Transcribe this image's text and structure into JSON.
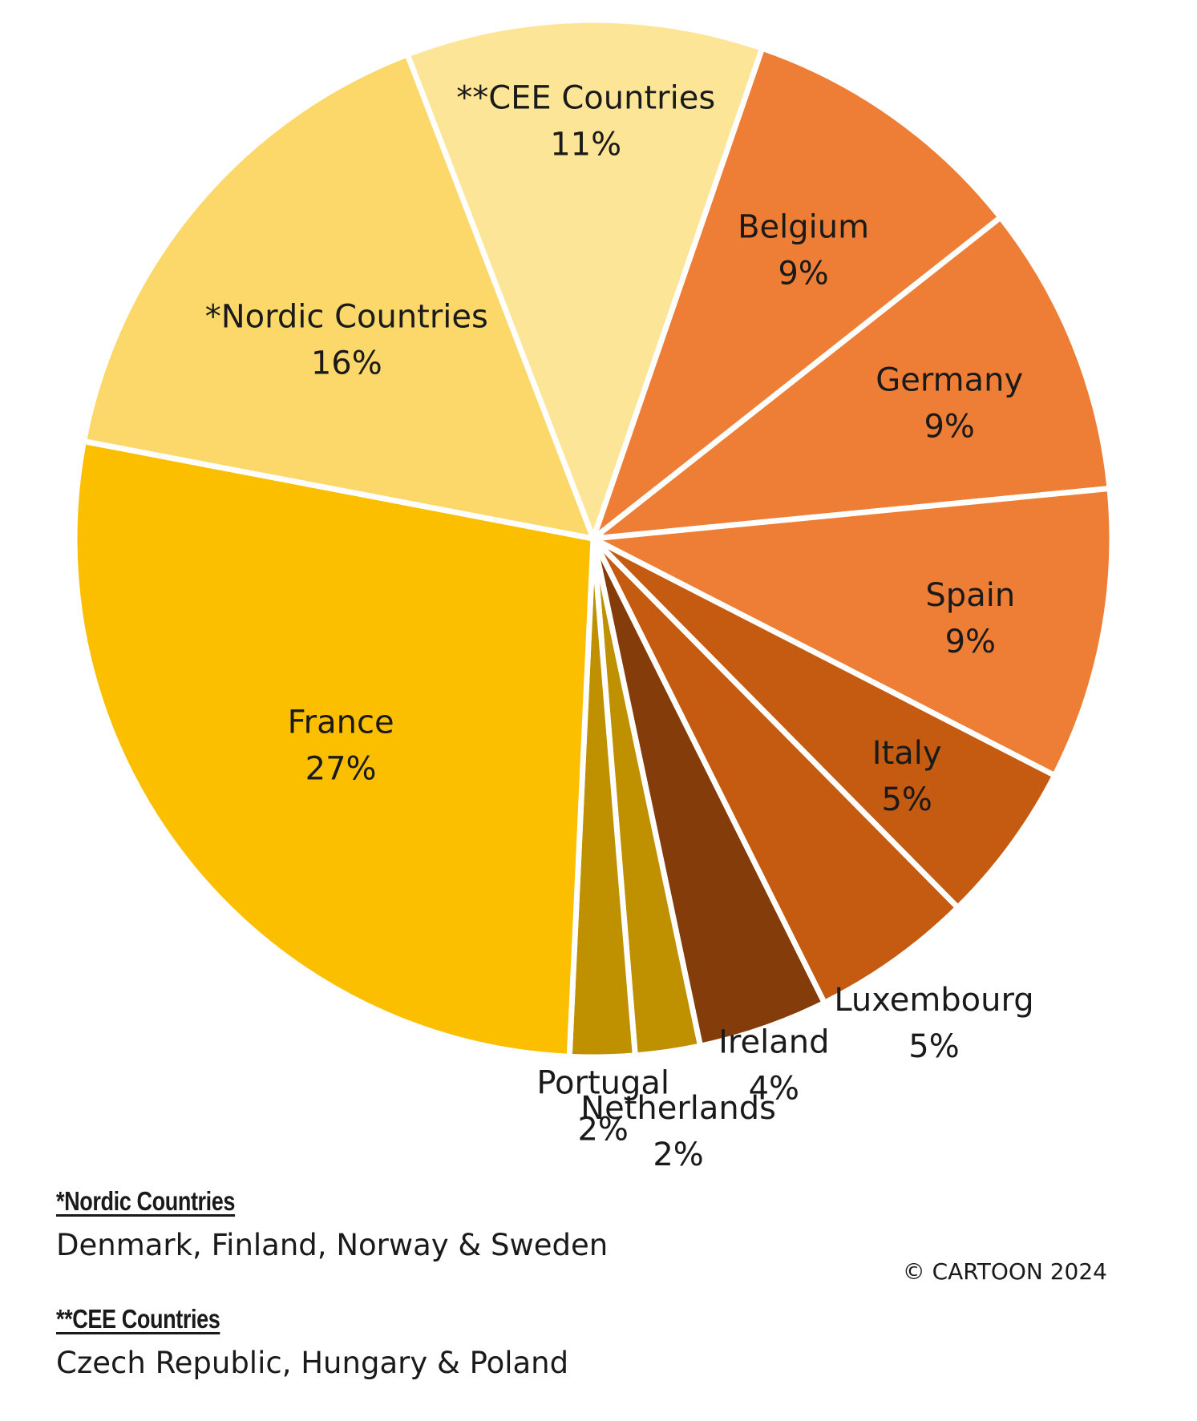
{
  "chart_data": {
    "type": "pie",
    "slices": [
      {
        "label": "**CEE Countries",
        "value": 11,
        "value_label": "11%",
        "color": "#FDE597"
      },
      {
        "label": "Belgium",
        "value": 9,
        "value_label": "9%",
        "color": "#EE7E35"
      },
      {
        "label": "Germany",
        "value": 9,
        "value_label": "9%",
        "color": "#EE7E35"
      },
      {
        "label": "Spain",
        "value": 9,
        "value_label": "9%",
        "color": "#EE7E35"
      },
      {
        "label": "Italy",
        "value": 5,
        "value_label": "5%",
        "color": "#C55A11"
      },
      {
        "label": "Luxembourg",
        "value": 5,
        "value_label": "5%",
        "color": "#C55A11"
      },
      {
        "label": "Ireland",
        "value": 4,
        "value_label": "4%",
        "color": "#843C0B"
      },
      {
        "label": "Netherlands",
        "value": 2,
        "value_label": "2%",
        "color": "#BF9000"
      },
      {
        "label": "Portugal",
        "value": 2,
        "value_label": "2%",
        "color": "#BF9000"
      },
      {
        "label": "France",
        "value": 27,
        "value_label": "27%",
        "color": "#FBBF00"
      },
      {
        "label": "*Nordic Countries",
        "value": 16,
        "value_label": "16%",
        "color": "#FCD86A"
      }
    ]
  },
  "notes": [
    {
      "title": "*Nordic Countries",
      "body": "Denmark, Finland, Norway & Sweden"
    },
    {
      "title": "**CEE Countries",
      "body": "Czech Republic, Hungary & Poland"
    }
  ],
  "copyright": "© CARTOON 2024"
}
